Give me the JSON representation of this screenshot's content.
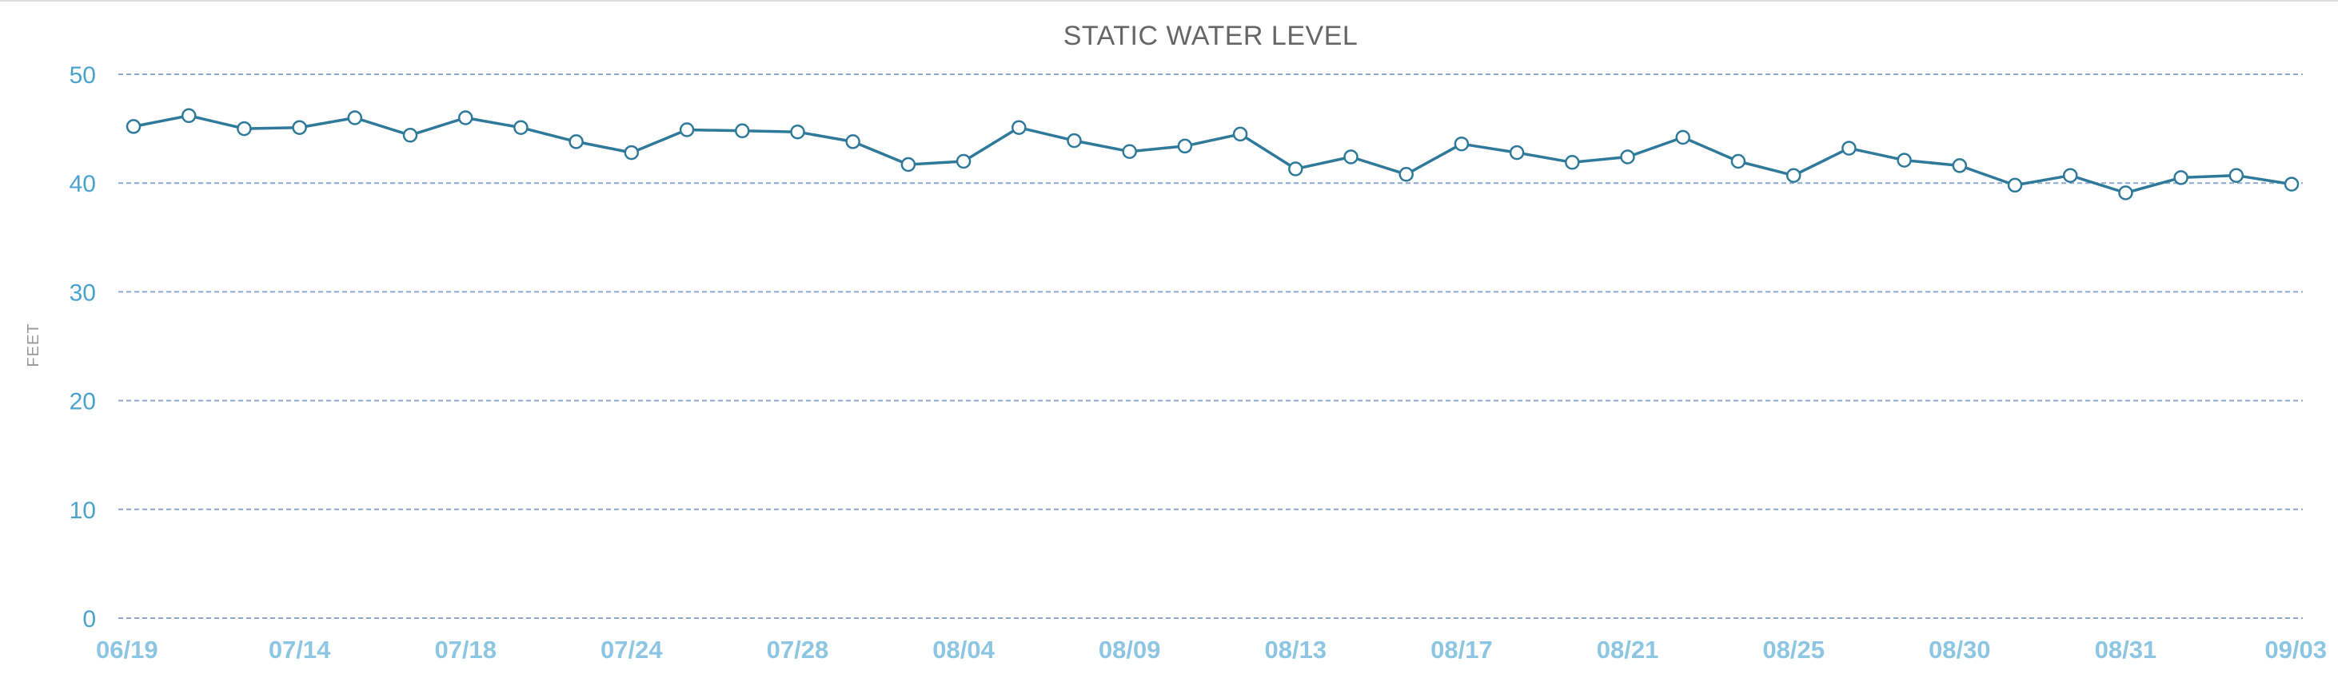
{
  "chart_data": {
    "type": "line",
    "title": "STATIC WATER LEVEL",
    "xlabel": "",
    "ylabel": "FEET",
    "ylim": [
      0,
      50
    ],
    "yticks": [
      0,
      10,
      20,
      30,
      40,
      50
    ],
    "grid": true,
    "xtick_labels": [
      "06/19",
      "07/14",
      "07/18",
      "07/24",
      "07/28",
      "08/04",
      "08/09",
      "08/13",
      "08/17",
      "08/21",
      "08/25",
      "08/30",
      "08/31",
      "09/03"
    ],
    "line_color": "#2f7a9a",
    "series": [
      {
        "values": [
          45.2,
          46.2,
          45.0,
          45.1,
          46.0,
          44.4,
          46.0,
          45.1,
          43.8,
          42.8,
          44.9,
          44.8,
          44.7,
          43.8,
          41.7,
          42.0,
          45.1,
          43.9,
          42.9,
          43.4,
          44.5,
          41.3,
          42.4,
          40.8,
          43.6,
          42.8,
          41.9,
          42.4,
          44.2,
          42.0,
          40.7,
          43.2,
          42.1,
          41.6,
          39.8,
          40.7,
          39.1,
          40.5,
          40.7,
          39.9
        ]
      }
    ]
  }
}
